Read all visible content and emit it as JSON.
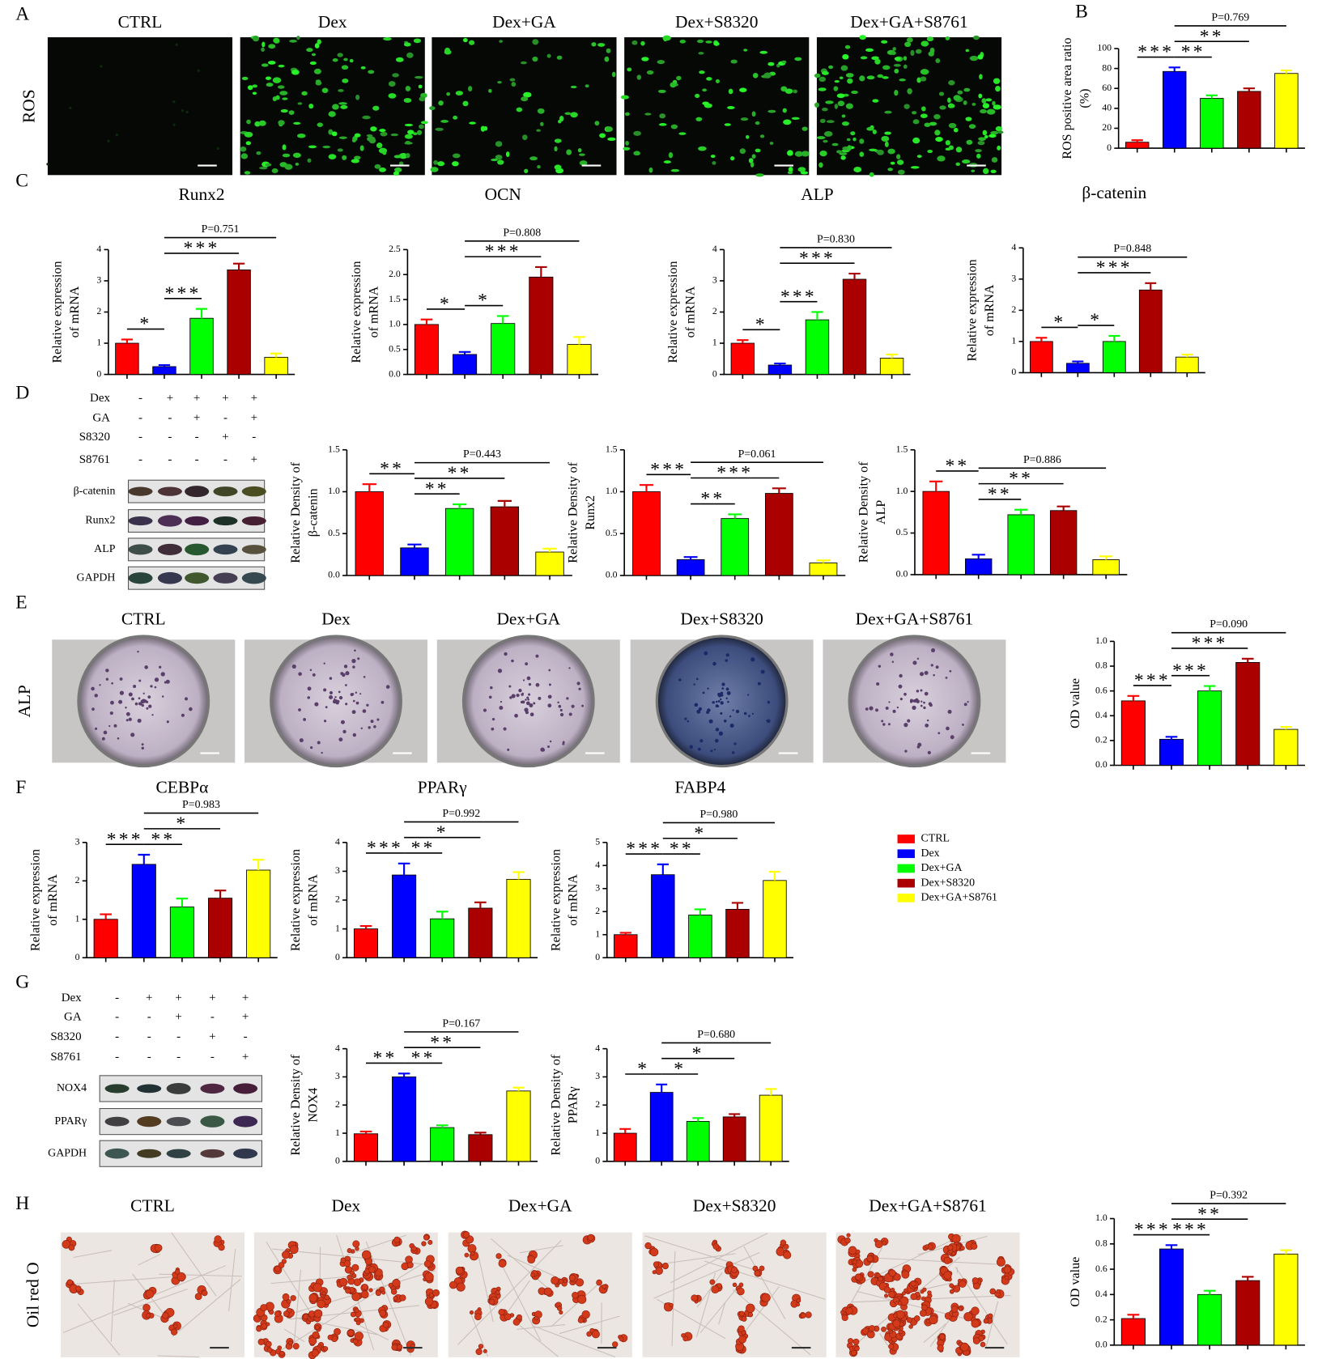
{
  "panel_labels": [
    "A",
    "B",
    "C",
    "D",
    "E",
    "F",
    "G",
    "H"
  ],
  "image_panels": [
    {
      "row_label": "ROS",
      "titles": [
        "CTRL",
        "Dex",
        "Dex+GA",
        "Dex+S8320",
        "Dex+GA+S8761"
      ]
    },
    {
      "row_label": "ALP",
      "titles": [
        "CTRL",
        "Dex",
        "Dex+GA",
        "Dex+S8320",
        "Dex+GA+S8761"
      ]
    },
    {
      "row_label": "Oil red O",
      "titles": [
        "CTRL",
        "Dex",
        "Dex+GA",
        "Dex+S8320",
        "Dex+GA+S8761"
      ]
    }
  ],
  "blots": [
    {
      "conditions": [
        {
          "name": "Dex",
          "signs": [
            "-",
            "+",
            "+",
            "+",
            "+"
          ]
        },
        {
          "name": "GA",
          "signs": [
            "-",
            "-",
            "+",
            "-",
            "+"
          ]
        },
        {
          "name": "S8320",
          "signs": [
            "-",
            "-",
            "-",
            "+",
            "-"
          ]
        },
        {
          "name": "S8761",
          "signs": [
            "-",
            "-",
            "-",
            "-",
            "+"
          ]
        }
      ],
      "bands": [
        "β-catenin",
        "Runx2",
        "ALP",
        "GAPDH"
      ]
    },
    {
      "conditions": [
        {
          "name": "Dex",
          "signs": [
            "-",
            "+",
            "+",
            "+",
            "+"
          ]
        },
        {
          "name": "GA",
          "signs": [
            "-",
            "-",
            "+",
            "-",
            "+"
          ]
        },
        {
          "name": "S8320",
          "signs": [
            "-",
            "-",
            "-",
            "+",
            "-"
          ]
        },
        {
          "name": "S8761",
          "signs": [
            "-",
            "-",
            "-",
            "-",
            "+"
          ]
        }
      ],
      "bands": [
        "NOX4",
        "PPARγ",
        "GAPDH"
      ]
    }
  ],
  "legend": {
    "items": [
      {
        "name": "CTRL",
        "color": "#ff0000"
      },
      {
        "name": "Dex",
        "color": "#0000ff"
      },
      {
        "name": "Dex+GA",
        "color": "#00ff00"
      },
      {
        "name": "Dex+S8320",
        "color": "#aa0000"
      },
      {
        "name": "Dex+GA+S8761",
        "color": "#ffff00"
      }
    ]
  },
  "chart_data": [
    {
      "type": "bar",
      "ylabel": [
        "ROS positive area ratio",
        "(%)"
      ],
      "values": [
        6,
        77,
        50,
        57,
        75
      ],
      "errors": [
        2,
        4,
        3,
        3,
        3
      ],
      "ylim": [
        0,
        100
      ],
      "yticks": [
        0,
        20,
        40,
        60,
        80,
        100
      ],
      "brackets": [
        {
          "label": "***",
          "from": "CTRL",
          "to": "Dex"
        },
        {
          "label": "**",
          "from": "Dex",
          "to": "Dex+GA"
        },
        {
          "label": "**",
          "from": "Dex",
          "to": "Dex+S8320"
        },
        {
          "label": "P=0.769",
          "from": "Dex",
          "to": "Dex+GA+S8761"
        }
      ]
    },
    {
      "type": "bar",
      "title": "Runx2",
      "ylabel": [
        "Relative expression",
        "of mRNA"
      ],
      "values": [
        1.0,
        0.25,
        1.8,
        3.35,
        0.55
      ],
      "errors": [
        0.12,
        0.05,
        0.3,
        0.2,
        0.12
      ],
      "ylim": [
        0,
        4
      ],
      "yticks": [
        0,
        1,
        2,
        3,
        4
      ],
      "brackets": [
        {
          "label": "*",
          "from": "CTRL",
          "to": "Dex"
        },
        {
          "label": "***",
          "from": "Dex",
          "to": "Dex+GA"
        },
        {
          "label": "***",
          "from": "Dex",
          "to": "Dex+S8320"
        },
        {
          "label": "P=0.751",
          "from": "Dex",
          "to": "Dex+GA+S8761"
        }
      ]
    },
    {
      "type": "bar",
      "title": "OCN",
      "ylabel": [
        "Relative expression",
        "of mRNA"
      ],
      "values": [
        1.0,
        0.4,
        1.02,
        1.95,
        0.6
      ],
      "errors": [
        0.1,
        0.05,
        0.15,
        0.2,
        0.15
      ],
      "ylim": [
        0,
        2.5
      ],
      "yticks": [
        {
          "value": 0,
          "label": "0.0"
        },
        0.5,
        {
          "value": 1,
          "label": "1.0"
        },
        1.5,
        {
          "value": 2,
          "label": "2.0"
        },
        2.5
      ],
      "brackets": [
        {
          "label": "*",
          "from": "CTRL",
          "to": "Dex"
        },
        {
          "label": "*",
          "from": "Dex",
          "to": "Dex+GA"
        },
        {
          "label": "***",
          "from": "Dex",
          "to": "Dex+S8320"
        },
        {
          "label": "P=0.808",
          "from": "Dex",
          "to": "Dex+GA+S8761"
        }
      ]
    },
    {
      "type": "bar",
      "title": "ALP",
      "ylabel": [
        "Relative expression",
        "of mRNA"
      ],
      "values": [
        1.0,
        0.3,
        1.75,
        3.05,
        0.52
      ],
      "errors": [
        0.1,
        0.05,
        0.25,
        0.18,
        0.12
      ],
      "ylim": [
        0,
        4
      ],
      "yticks": [
        0,
        1,
        2,
        3,
        4
      ],
      "brackets": [
        {
          "label": "*",
          "from": "CTRL",
          "to": "Dex"
        },
        {
          "label": "***",
          "from": "Dex",
          "to": "Dex+GA"
        },
        {
          "label": "***",
          "from": "Dex",
          "to": "Dex+S8320"
        },
        {
          "label": "P=0.830",
          "from": "Dex",
          "to": "Dex+GA+S8761"
        }
      ]
    },
    {
      "type": "bar",
      "title": "β-catenin",
      "ylabel": [
        "Relative expression",
        "of mRNA"
      ],
      "values": [
        1.0,
        0.3,
        1.0,
        2.65,
        0.5
      ],
      "errors": [
        0.12,
        0.06,
        0.18,
        0.22,
        0.08
      ],
      "ylim": [
        0,
        4
      ],
      "yticks": [
        0,
        1,
        2,
        3,
        4
      ],
      "brackets": [
        {
          "label": "*",
          "from": "CTRL",
          "to": "Dex"
        },
        {
          "label": "*",
          "from": "Dex",
          "to": "Dex+GA"
        },
        {
          "label": "***",
          "from": "Dex",
          "to": "Dex+S8320"
        },
        {
          "label": "P=0.848",
          "from": "Dex",
          "to": "Dex+GA+S8761"
        }
      ]
    },
    {
      "type": "bar",
      "ylabel": [
        "Relative Density of",
        "β-catenin"
      ],
      "values": [
        1.0,
        0.33,
        0.8,
        0.82,
        0.28
      ],
      "errors": [
        0.09,
        0.04,
        0.05,
        0.07,
        0.04
      ],
      "ylim": [
        0,
        1.5
      ],
      "yticks": [
        {
          "value": 0,
          "label": "0.0"
        },
        0.5,
        {
          "value": 1,
          "label": "1.0"
        },
        1.5
      ],
      "brackets": [
        {
          "label": "**",
          "from": "CTRL",
          "to": "Dex"
        },
        {
          "label": "**",
          "from": "Dex",
          "to": "Dex+GA"
        },
        {
          "label": "**",
          "from": "Dex",
          "to": "Dex+S8320"
        },
        {
          "label": "P=0.443",
          "from": "Dex",
          "to": "Dex+GA+S8761"
        }
      ]
    },
    {
      "type": "bar",
      "ylabel": [
        "Relative Density of",
        "Runx2"
      ],
      "values": [
        1.0,
        0.19,
        0.68,
        0.98,
        0.15
      ],
      "errors": [
        0.08,
        0.03,
        0.05,
        0.06,
        0.03
      ],
      "ylim": [
        0,
        1.5
      ],
      "yticks": [
        {
          "value": 0,
          "label": "0.0"
        },
        0.5,
        {
          "value": 1,
          "label": "1.0"
        },
        1.5
      ],
      "brackets": [
        {
          "label": "***",
          "from": "CTRL",
          "to": "Dex"
        },
        {
          "label": "**",
          "from": "Dex",
          "to": "Dex+GA"
        },
        {
          "label": "***",
          "from": "Dex",
          "to": "Dex+S8320"
        },
        {
          "label": "P=0.061",
          "from": "Dex",
          "to": "Dex+GA+S8761"
        }
      ]
    },
    {
      "type": "bar",
      "ylabel": [
        "Relative Density of",
        "ALP"
      ],
      "values": [
        1.0,
        0.19,
        0.72,
        0.77,
        0.18
      ],
      "errors": [
        0.12,
        0.05,
        0.06,
        0.05,
        0.04
      ],
      "ylim": [
        0,
        1.5
      ],
      "yticks": [
        {
          "value": 0,
          "label": "0.0"
        },
        0.5,
        {
          "value": 1,
          "label": "1.0"
        },
        1.5
      ],
      "brackets": [
        {
          "label": "**",
          "from": "CTRL",
          "to": "Dex"
        },
        {
          "label": "**",
          "from": "Dex",
          "to": "Dex+GA"
        },
        {
          "label": "**",
          "from": "Dex",
          "to": "Dex+S8320"
        },
        {
          "label": "P=0.886",
          "from": "Dex",
          "to": "Dex+GA+S8761"
        }
      ]
    },
    {
      "type": "bar",
      "ylabel": [
        "OD value"
      ],
      "values": [
        0.52,
        0.21,
        0.6,
        0.83,
        0.29
      ],
      "errors": [
        0.04,
        0.02,
        0.04,
        0.03,
        0.02
      ],
      "ylim": [
        0,
        1
      ],
      "yticks": [
        {
          "value": 0,
          "label": "0.0"
        },
        0.2,
        0.4,
        0.6,
        0.8,
        {
          "value": 1,
          "label": "1.0"
        }
      ],
      "brackets": [
        {
          "label": "***",
          "from": "CTRL",
          "to": "Dex"
        },
        {
          "label": "***",
          "from": "Dex",
          "to": "Dex+GA"
        },
        {
          "label": "***",
          "from": "Dex",
          "to": "Dex+S8320"
        },
        {
          "label": "P=0.090",
          "from": "Dex",
          "to": "Dex+GA+S8761"
        }
      ]
    },
    {
      "type": "bar",
      "title": "CEBPα",
      "ylabel": [
        "Relative expression",
        "of mRNA"
      ],
      "values": [
        1.0,
        2.43,
        1.32,
        1.55,
        2.28
      ],
      "errors": [
        0.13,
        0.25,
        0.22,
        0.2,
        0.27
      ],
      "ylim": [
        0,
        3
      ],
      "yticks": [
        0,
        1,
        2,
        3
      ],
      "brackets": [
        {
          "label": "***",
          "from": "CTRL",
          "to": "Dex"
        },
        {
          "label": "**",
          "from": "Dex",
          "to": "Dex+GA"
        },
        {
          "label": "*",
          "from": "Dex",
          "to": "Dex+S8320"
        },
        {
          "label": "P=0.983",
          "from": "Dex",
          "to": "Dex+GA+S8761"
        }
      ]
    },
    {
      "type": "bar",
      "title": "PPARγ",
      "ylabel": [
        "Relative expression",
        "of mRNA"
      ],
      "values": [
        1.0,
        2.87,
        1.35,
        1.72,
        2.72
      ],
      "errors": [
        0.1,
        0.4,
        0.25,
        0.2,
        0.25
      ],
      "ylim": [
        0,
        4
      ],
      "yticks": [
        0,
        1,
        2,
        3,
        4
      ],
      "brackets": [
        {
          "label": "***",
          "from": "CTRL",
          "to": "Dex"
        },
        {
          "label": "**",
          "from": "Dex",
          "to": "Dex+GA"
        },
        {
          "label": "*",
          "from": "Dex",
          "to": "Dex+S8320"
        },
        {
          "label": "P=0.992",
          "from": "Dex",
          "to": "Dex+GA+S8761"
        }
      ]
    },
    {
      "type": "bar",
      "title": "FABP4",
      "ylabel": [
        "Relative expression",
        "of mRNA"
      ],
      "values": [
        1.0,
        3.6,
        1.85,
        2.1,
        3.35
      ],
      "errors": [
        0.08,
        0.45,
        0.25,
        0.28,
        0.38
      ],
      "ylim": [
        0,
        5
      ],
      "yticks": [
        0,
        1,
        2,
        3,
        4,
        5
      ],
      "brackets": [
        {
          "label": "***",
          "from": "CTRL",
          "to": "Dex"
        },
        {
          "label": "**",
          "from": "Dex",
          "to": "Dex+GA"
        },
        {
          "label": "*",
          "from": "Dex",
          "to": "Dex+S8320"
        },
        {
          "label": "P=0.980",
          "from": "Dex",
          "to": "Dex+GA+S8761"
        }
      ]
    },
    {
      "type": "bar",
      "ylabel": [
        "Relative Density of",
        "NOX4"
      ],
      "values": [
        0.98,
        3.0,
        1.2,
        0.95,
        2.5
      ],
      "errors": [
        0.08,
        0.12,
        0.08,
        0.07,
        0.12
      ],
      "ylim": [
        0,
        4
      ],
      "yticks": [
        0,
        1,
        2,
        3,
        4
      ],
      "brackets": [
        {
          "label": "**",
          "from": "CTRL",
          "to": "Dex"
        },
        {
          "label": "**",
          "from": "Dex",
          "to": "Dex+GA"
        },
        {
          "label": "**",
          "from": "Dex",
          "to": "Dex+S8320"
        },
        {
          "label": "P=0.167",
          "from": "Dex",
          "to": "Dex+GA+S8761"
        }
      ]
    },
    {
      "type": "bar",
      "ylabel": [
        "Relative Density of",
        "PPARγ"
      ],
      "values": [
        1.0,
        2.45,
        1.42,
        1.58,
        2.35
      ],
      "errors": [
        0.15,
        0.28,
        0.12,
        0.1,
        0.22
      ],
      "ylim": [
        0,
        4
      ],
      "yticks": [
        0,
        1,
        2,
        3,
        4
      ],
      "brackets": [
        {
          "label": "*",
          "from": "CTRL",
          "to": "Dex"
        },
        {
          "label": "*",
          "from": "Dex",
          "to": "Dex+GA"
        },
        {
          "label": "*",
          "from": "Dex",
          "to": "Dex+S8320"
        },
        {
          "label": "P=0.680",
          "from": "Dex",
          "to": "Dex+GA+S8761"
        }
      ]
    },
    {
      "type": "bar",
      "ylabel": [
        "OD value"
      ],
      "values": [
        0.21,
        0.76,
        0.4,
        0.51,
        0.72
      ],
      "errors": [
        0.03,
        0.03,
        0.03,
        0.03,
        0.03
      ],
      "ylim": [
        0,
        1
      ],
      "yticks": [
        {
          "value": 0,
          "label": "0.0"
        },
        0.2,
        0.4,
        0.6,
        0.8,
        {
          "value": 1,
          "label": "1.0"
        }
      ],
      "brackets": [
        {
          "label": "***",
          "from": "CTRL",
          "to": "Dex"
        },
        {
          "label": "***",
          "from": "Dex",
          "to": "Dex+GA"
        },
        {
          "label": "**",
          "from": "Dex",
          "to": "Dex+S8320"
        },
        {
          "label": "P=0.392",
          "from": "Dex",
          "to": "Dex+GA+S8761"
        }
      ]
    }
  ]
}
